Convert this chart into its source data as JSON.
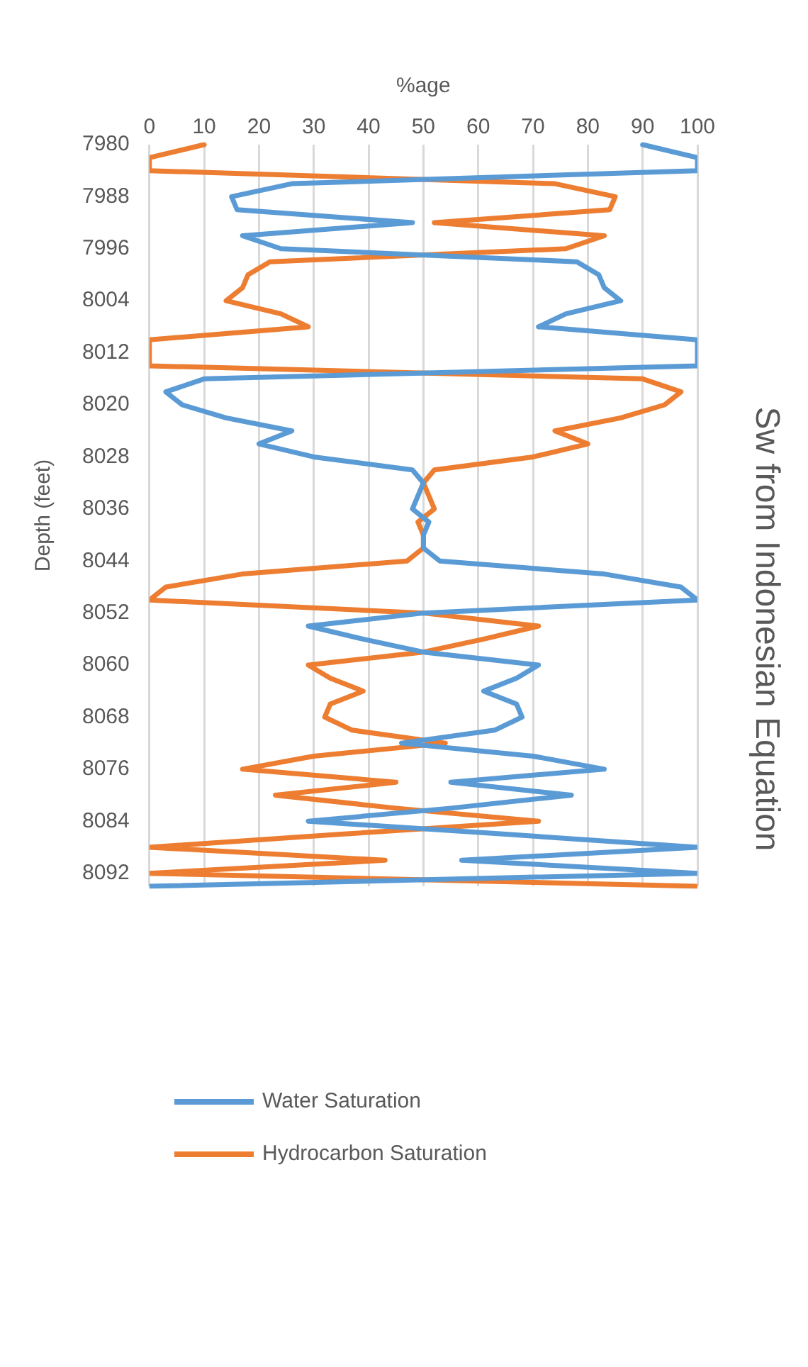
{
  "chart_data": {
    "type": "line",
    "orientation": "horizontal",
    "title": "Sw from Indonesian Equation",
    "xlabel": "%age",
    "ylabel": "Depth (feet)",
    "categories": [
      "7980",
      null,
      null,
      null,
      "7988",
      null,
      null,
      null,
      "7996",
      null,
      null,
      null,
      "8004",
      null,
      null,
      null,
      "8012",
      null,
      null,
      null,
      "8020",
      null,
      null,
      null,
      "8028",
      null,
      null,
      null,
      "8036",
      null,
      null,
      null,
      "8044",
      null,
      null,
      null,
      "8052",
      null,
      null,
      null,
      "8060",
      null,
      null,
      null,
      "8068",
      null,
      null,
      null,
      "8076",
      null,
      null,
      null,
      "8084",
      null,
      null,
      null,
      "8092",
      null
    ],
    "series": [
      {
        "name": "Water Saturation",
        "color": "#5b9bd5",
        "values": [
          90,
          100,
          100,
          26,
          15,
          16,
          48,
          17,
          24,
          78,
          82,
          83,
          86,
          76,
          71,
          100,
          100,
          100,
          10,
          3,
          6,
          14,
          26,
          20,
          30,
          48,
          50,
          49,
          48,
          51,
          50,
          50,
          53,
          83,
          97,
          100,
          50,
          29,
          39,
          50,
          71,
          67,
          61,
          67,
          68,
          63,
          46,
          70,
          83,
          55,
          77,
          55,
          29,
          65,
          100,
          57,
          100,
          0
        ]
      },
      {
        "name": "Hydrocarbon Saturation",
        "color": "#ed7d31",
        "values": [
          10,
          0,
          0,
          74,
          85,
          84,
          52,
          83,
          76,
          22,
          18,
          17,
          14,
          24,
          29,
          0,
          0,
          0,
          90,
          97,
          94,
          86,
          74,
          80,
          70,
          52,
          50,
          51,
          52,
          49,
          50,
          50,
          47,
          17,
          3,
          0,
          50,
          71,
          61,
          50,
          29,
          33,
          39,
          33,
          32,
          37,
          54,
          30,
          17,
          45,
          23,
          45,
          71,
          35,
          0,
          43,
          0,
          100
        ]
      }
    ],
    "xlim": [
      0,
      100
    ],
    "xticks": [
      0,
      10,
      20,
      30,
      40,
      50,
      60,
      70,
      80,
      90,
      100
    ],
    "grid": "x",
    "legend": "bottom",
    "marker": "none",
    "line_style": "solid"
  }
}
